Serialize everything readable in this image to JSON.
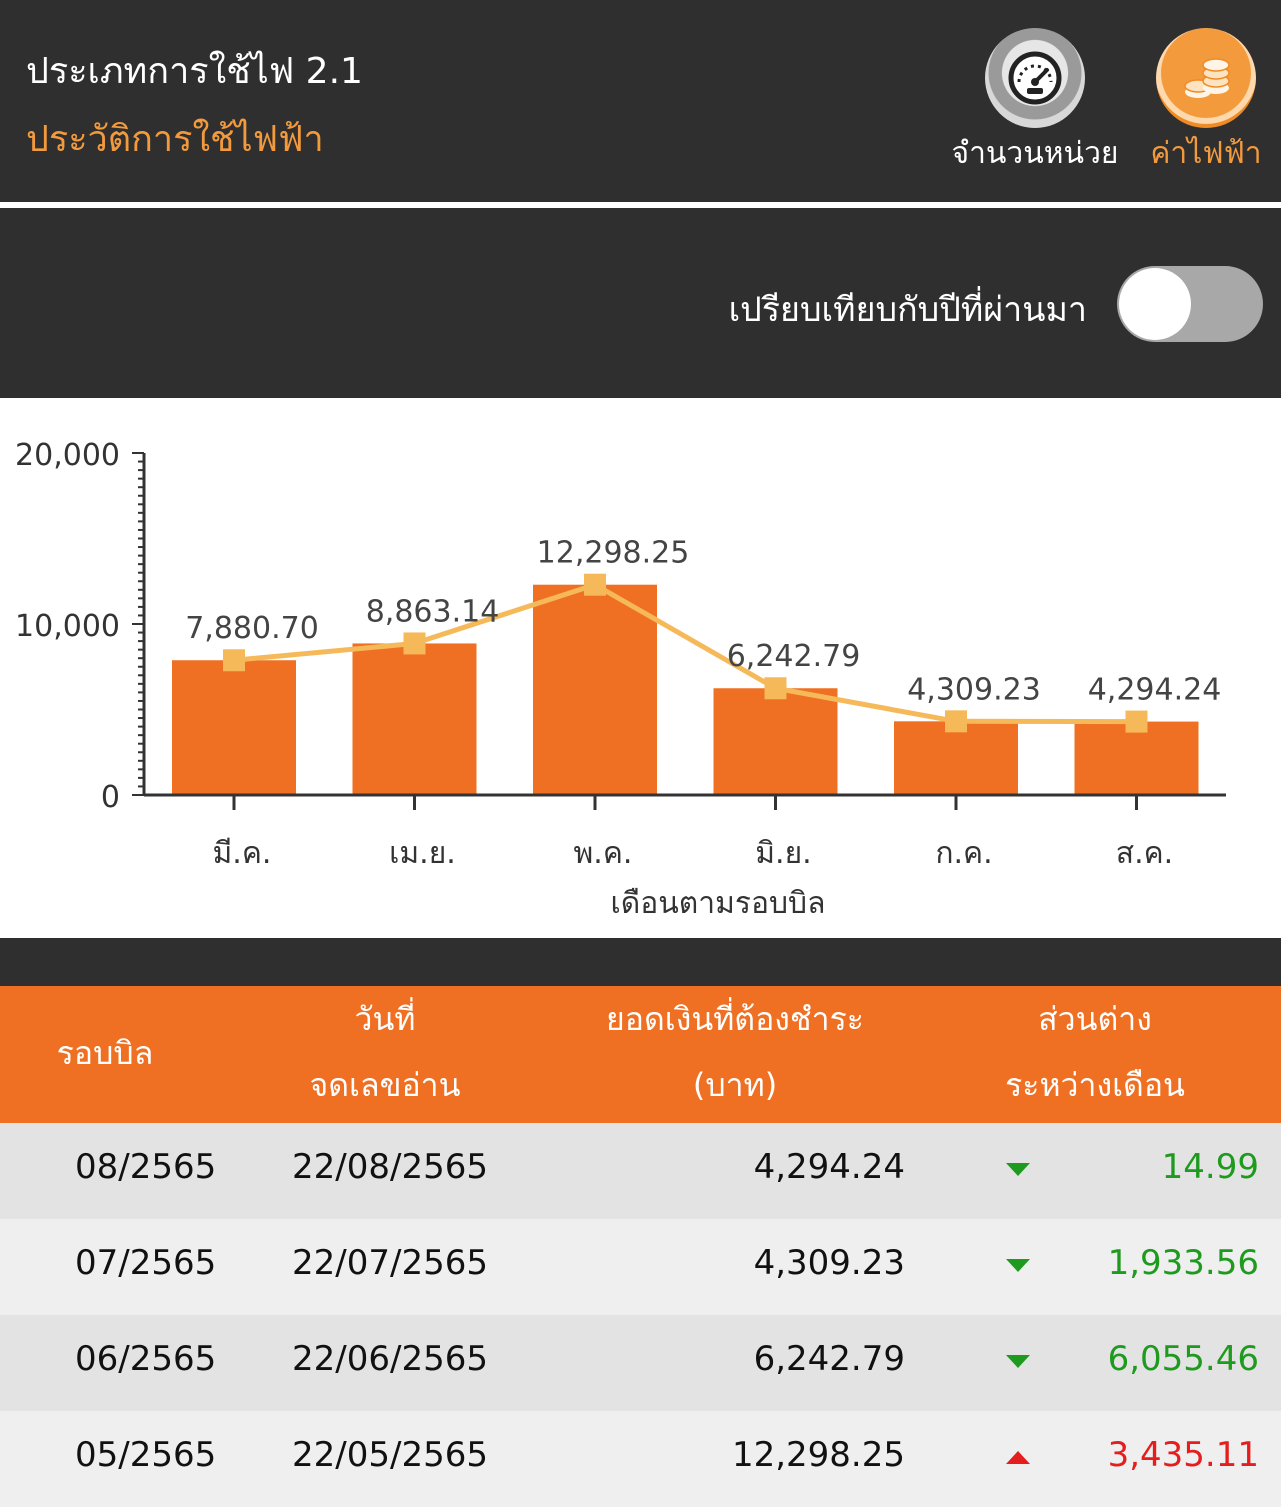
{
  "header": {
    "title": "ประเภทการใช้ไฟ 2.1",
    "subtitle": "ประวัติการใช้ไฟฟ้า",
    "mode_units_label": "จำนวนหน่วย",
    "mode_cost_label": "ค่าไฟฟ้า",
    "mode_units_icon": "speedometer-icon",
    "mode_cost_icon": "coins-icon",
    "active_mode": "ค่าไฟฟ้า",
    "accent_color": "#f39a3d"
  },
  "compare": {
    "label": "เปรียบเทียบกับปีที่ผ่านมา",
    "enabled": false
  },
  "chart_data": {
    "type": "bar",
    "categories": [
      "มี.ค.",
      "เม.ย.",
      "พ.ค.",
      "มิ.ย.",
      "ก.ค.",
      "ส.ค."
    ],
    "values": [
      7880.7,
      8863.14,
      12298.25,
      6242.79,
      4309.23,
      4294.24
    ],
    "data_labels": [
      "7,880.70",
      "8,863.14",
      "12,298.25",
      "6,242.79",
      "4,309.23",
      "4,294.24"
    ],
    "line_overlay": true,
    "xlabel": "เดือนตามรอบบิล",
    "ylabel": "",
    "ylim": [
      0,
      20000
    ],
    "yticks": [
      "0",
      "10,000",
      "20,000"
    ],
    "bar_color": "#ef7022",
    "line_color": "#f6b95a"
  },
  "table": {
    "headers": {
      "bill_cycle": "รอบบิล",
      "read_date_line1": "วันที่",
      "read_date_line2": "จดเลขอ่าน",
      "amount_line1": "ยอดเงินที่ต้องชำระ",
      "amount_line2": "(บาท)",
      "diff_line1": "ส่วนต่าง",
      "diff_line2": "ระหว่างเดือน"
    },
    "rows": [
      {
        "bill": "08/2565",
        "date": "22/08/2565",
        "amount": "4,294.24",
        "diff": "14.99",
        "trend": "down"
      },
      {
        "bill": "07/2565",
        "date": "22/07/2565",
        "amount": "4,309.23",
        "diff": "1,933.56",
        "trend": "down"
      },
      {
        "bill": "06/2565",
        "date": "22/06/2565",
        "amount": "6,242.79",
        "diff": "6,055.46",
        "trend": "down"
      },
      {
        "bill": "05/2565",
        "date": "22/05/2565",
        "amount": "12,298.25",
        "diff": "3,435.11",
        "trend": "up"
      }
    ],
    "down_color": "#1e9a1e",
    "up_color": "#e41e1e"
  }
}
